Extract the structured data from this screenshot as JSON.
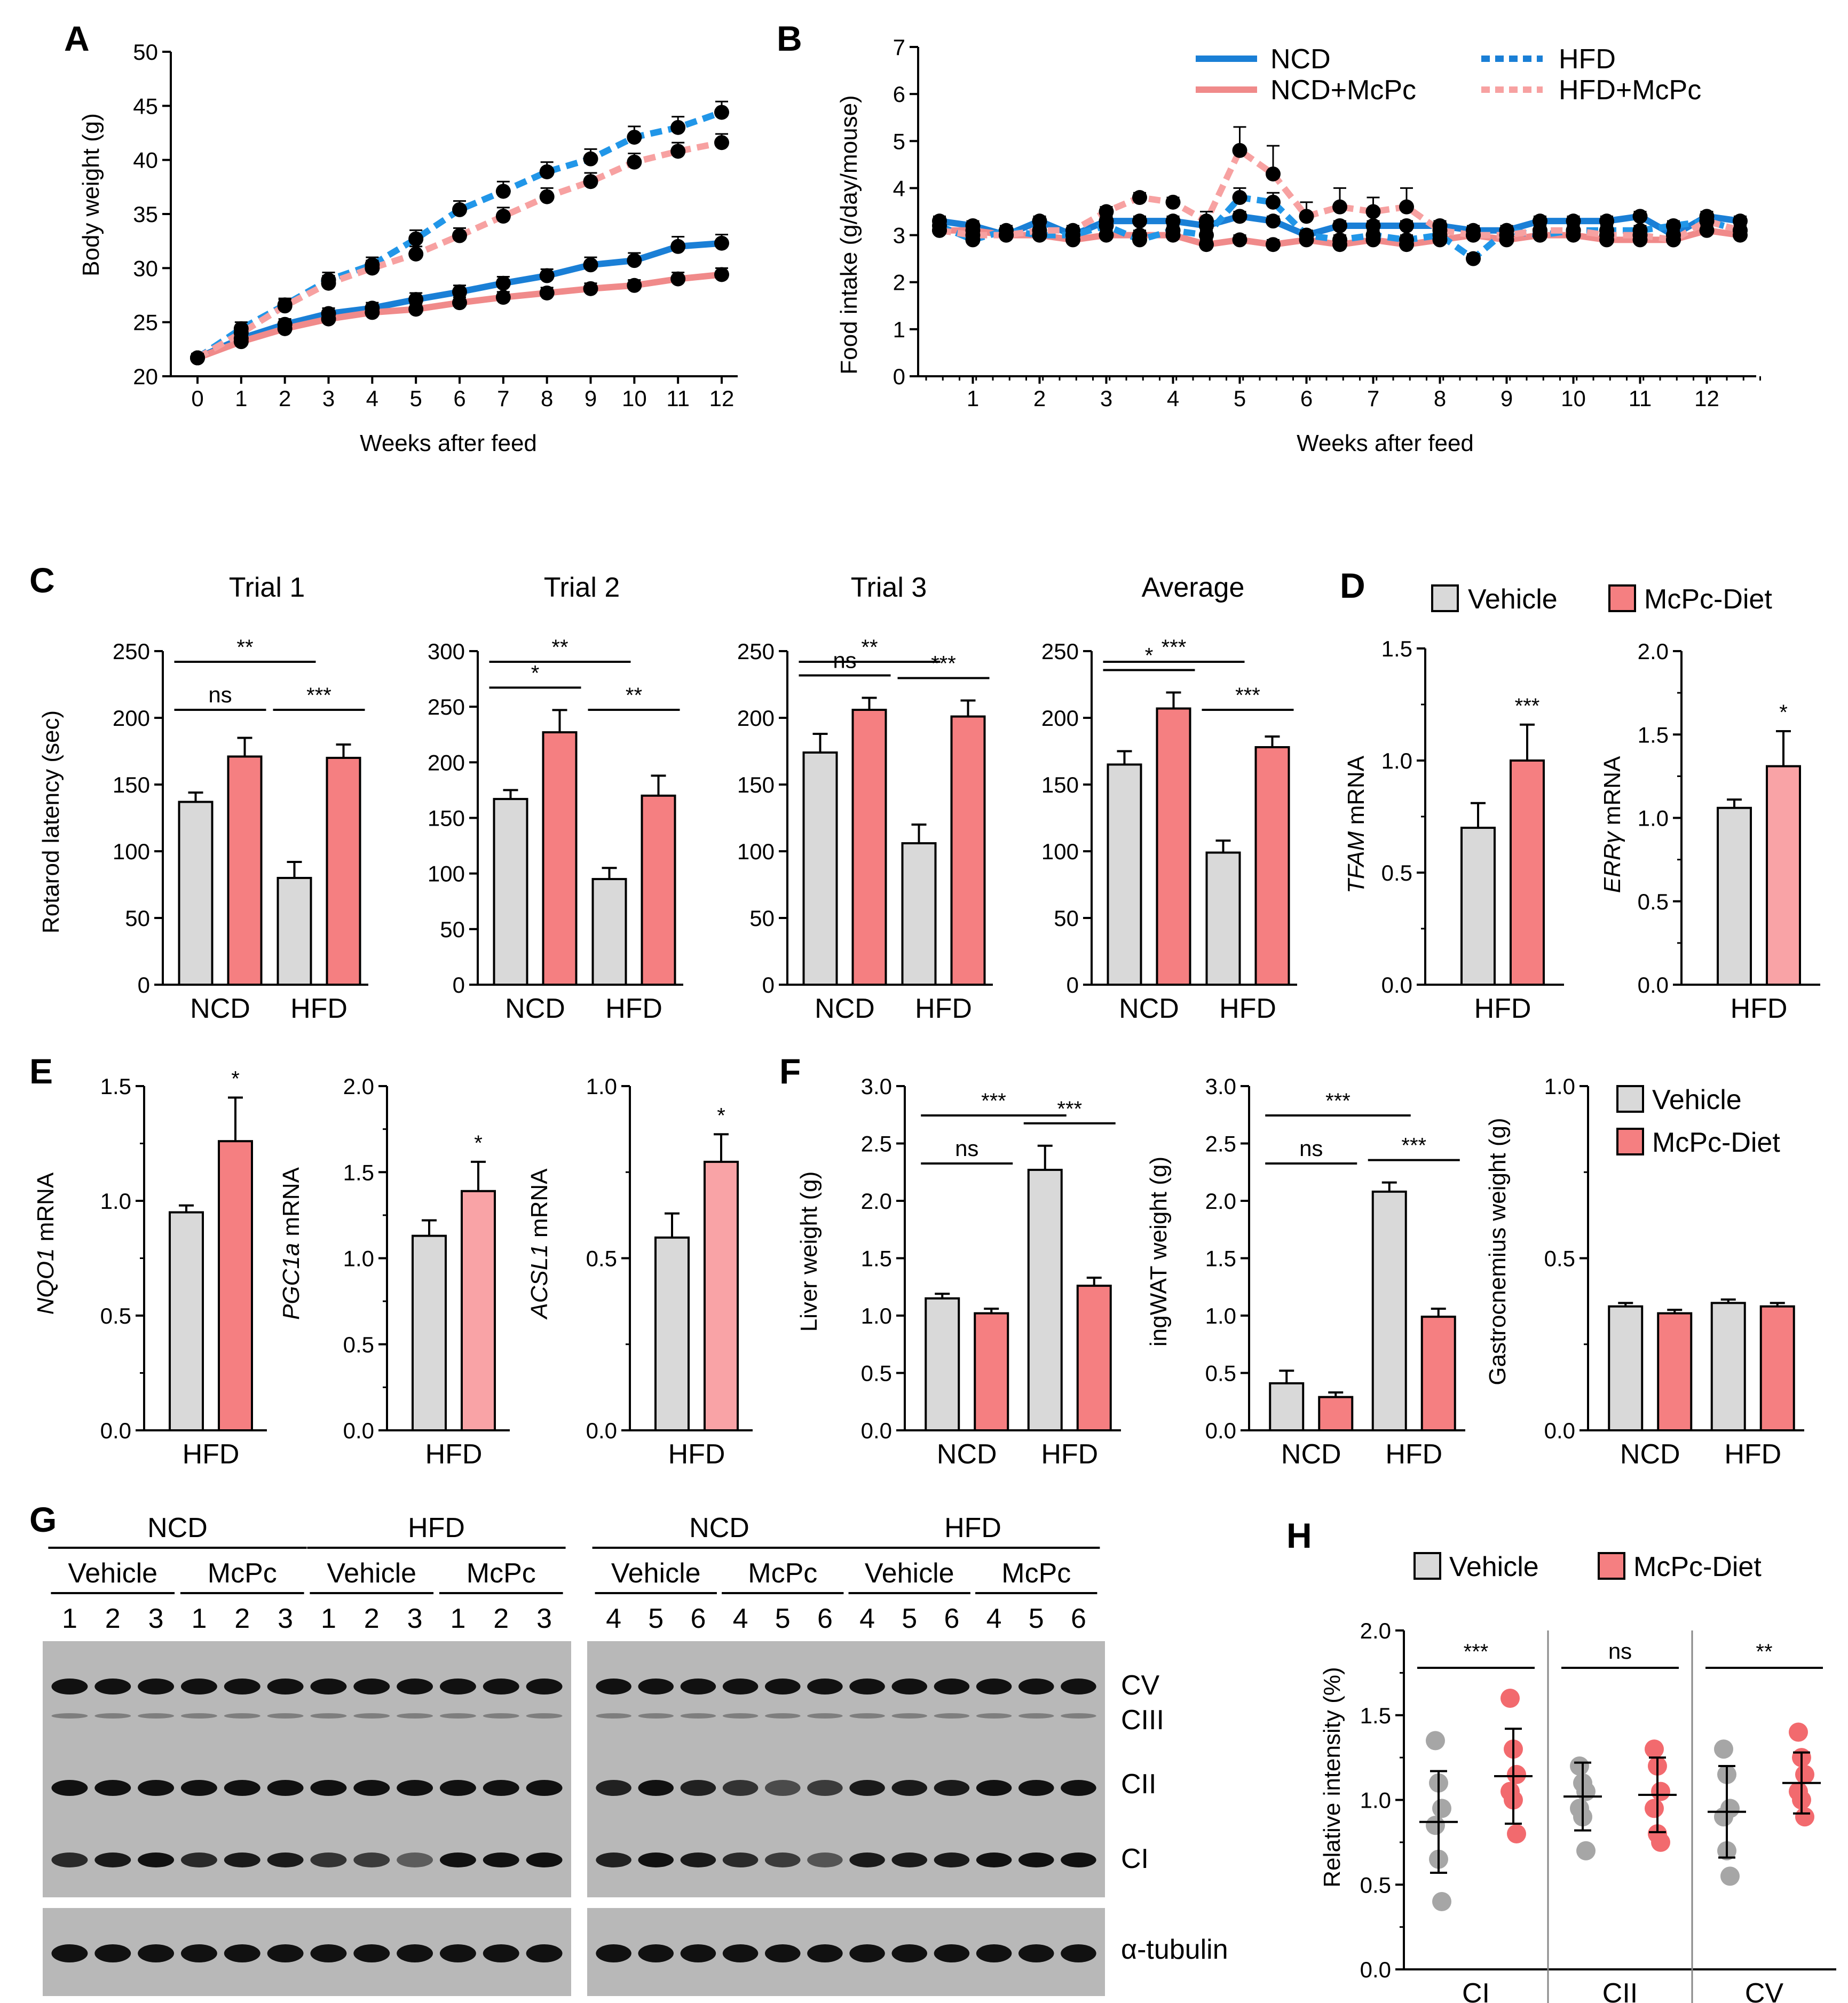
{
  "colors": {
    "ncd": "#1a7fd6",
    "ncd_mcpc": "#f08a8a",
    "hfd": "#2196e8",
    "hfd_mcpc": "#f7a1a1",
    "vehicle": "#d9d9d9",
    "mcpc": "#f57f81",
    "mcpc_light": "#f9a3a6",
    "dot_gray": "#a6a6a6",
    "dot_red": "#f26a6e"
  },
  "panels": {
    "A": "A",
    "B": "B",
    "C": "C",
    "D": "D",
    "E": "E",
    "F": "F",
    "G": "G",
    "H": "H"
  },
  "legends": {
    "b": {
      "ncd": "NCD",
      "ncd_mcpc": "NCD+McPc",
      "hfd": "HFD",
      "hfd_mcpc": "HFD+McPc"
    },
    "vehicle": "Vehicle",
    "mcpc_diet": "McPc-Diet"
  },
  "chart_data": [
    {
      "id": "A",
      "type": "line",
      "ylabel": "Body weight (g)",
      "xlabel": "Weeks after feed",
      "ylim": [
        20,
        50
      ],
      "yticks": [
        20,
        25,
        30,
        35,
        40,
        45,
        50
      ],
      "x": [
        0,
        1,
        2,
        3,
        4,
        5,
        6,
        7,
        8,
        9,
        10,
        11,
        12
      ],
      "series": [
        {
          "name": "NCD",
          "values": [
            21.7,
            23.5,
            24.8,
            25.8,
            26.3,
            27.1,
            27.8,
            28.6,
            29.3,
            30.3,
            30.7,
            32.0,
            32.3
          ],
          "err": [
            0.4,
            0.5,
            0.5,
            0.5,
            0.5,
            0.6,
            0.6,
            0.6,
            0.6,
            0.7,
            0.7,
            0.9,
            0.8
          ]
        },
        {
          "name": "NCD+McPc",
          "values": [
            21.7,
            23.2,
            24.4,
            25.3,
            25.9,
            26.2,
            26.8,
            27.3,
            27.7,
            28.1,
            28.4,
            29.0,
            29.4
          ],
          "err": [
            0.4,
            0.5,
            0.5,
            0.5,
            0.5,
            0.5,
            0.5,
            0.5,
            0.5,
            0.5,
            0.5,
            0.6,
            0.6
          ]
        },
        {
          "name": "HFD",
          "values": [
            21.7,
            24.4,
            26.6,
            28.9,
            30.3,
            32.7,
            35.4,
            37.1,
            38.9,
            40.1,
            42.1,
            43.0,
            44.4
          ],
          "err": [
            0.4,
            0.6,
            0.6,
            0.7,
            0.7,
            0.8,
            0.8,
            0.9,
            0.9,
            0.9,
            1.0,
            1.0,
            1.0
          ]
        },
        {
          "name": "HFD+McPc",
          "values": [
            21.7,
            24.0,
            26.5,
            28.6,
            30.0,
            31.3,
            33.0,
            34.8,
            36.6,
            38.0,
            39.8,
            40.8,
            41.6
          ],
          "err": [
            0.4,
            0.5,
            0.6,
            0.7,
            0.7,
            0.7,
            0.7,
            0.8,
            0.8,
            0.8,
            0.8,
            0.8,
            0.8
          ]
        }
      ]
    },
    {
      "id": "B",
      "type": "line",
      "ylabel": "Food intake (g/day/mouse)",
      "xlabel": "Weeks after feed",
      "ylim": [
        0,
        7
      ],
      "yticks": [
        0,
        1,
        2,
        3,
        4,
        5,
        6,
        7
      ],
      "xticks": [
        1,
        2,
        3,
        4,
        5,
        6,
        7,
        8,
        9,
        10,
        11,
        12
      ],
      "x": [
        0.5,
        1.0,
        1.5,
        2.0,
        2.5,
        3.0,
        3.5,
        4.0,
        4.5,
        5.0,
        5.5,
        6.0,
        6.5,
        7.0,
        7.5,
        8.0,
        8.5,
        9.0,
        9.5,
        10.0,
        10.5,
        11.0,
        11.5,
        12.0,
        12.5
      ],
      "series": [
        {
          "name": "NCD",
          "values": [
            3.3,
            3.2,
            3.0,
            3.3,
            3.0,
            3.3,
            3.3,
            3.3,
            3.2,
            3.4,
            3.3,
            3.0,
            3.2,
            3.2,
            3.2,
            3.2,
            3.1,
            3.1,
            3.3,
            3.3,
            3.3,
            3.4,
            3.0,
            3.4,
            3.3
          ],
          "err": [
            0.1,
            0.1,
            0.1,
            0.1,
            0.1,
            0.1,
            0.1,
            0.1,
            0.1,
            0.1,
            0.1,
            0.1,
            0.1,
            0.1,
            0.1,
            0.1,
            0.1,
            0.1,
            0.1,
            0.1,
            0.1,
            0.1,
            0.1,
            0.1,
            0.1
          ]
        },
        {
          "name": "NCD+McPc",
          "values": [
            3.1,
            3.1,
            3.0,
            3.0,
            2.9,
            3.0,
            3.0,
            3.0,
            2.8,
            2.9,
            2.8,
            2.9,
            2.8,
            2.9,
            2.8,
            2.9,
            3.0,
            2.9,
            3.0,
            3.0,
            2.9,
            2.9,
            2.9,
            3.1,
            3.0
          ],
          "err": [
            0.1,
            0.1,
            0.1,
            0.1,
            0.1,
            0.1,
            0.1,
            0.1,
            0.1,
            0.1,
            0.1,
            0.1,
            0.1,
            0.1,
            0.1,
            0.1,
            0.1,
            0.1,
            0.1,
            0.1,
            0.1,
            0.1,
            0.1,
            0.1,
            0.1
          ]
        },
        {
          "name": "HFD",
          "values": [
            3.2,
            2.9,
            3.1,
            3.0,
            3.0,
            3.2,
            2.9,
            3.1,
            3.0,
            3.8,
            3.7,
            3.0,
            2.9,
            3.0,
            2.9,
            3.0,
            2.5,
            3.1,
            3.0,
            3.1,
            3.1,
            3.1,
            3.2,
            3.3,
            3.1
          ],
          "err": [
            0.1,
            0.1,
            0.1,
            0.1,
            0.1,
            0.1,
            0.1,
            0.1,
            0.1,
            0.2,
            0.2,
            0.1,
            0.1,
            0.1,
            0.1,
            0.1,
            0.1,
            0.1,
            0.1,
            0.1,
            0.1,
            0.1,
            0.1,
            0.1,
            0.1
          ]
        },
        {
          "name": "HFD+McPc",
          "values": [
            3.1,
            3.0,
            3.0,
            3.1,
            3.1,
            3.5,
            3.8,
            3.7,
            3.3,
            4.8,
            4.3,
            3.4,
            3.6,
            3.5,
            3.6,
            3.1,
            3.0,
            3.0,
            3.1,
            3.1,
            3.0,
            3.0,
            2.9,
            3.3,
            3.1
          ],
          "err": [
            0.1,
            0.1,
            0.1,
            0.1,
            0.1,
            0.1,
            0.1,
            0.1,
            0.2,
            0.5,
            0.6,
            0.3,
            0.4,
            0.3,
            0.4,
            0.2,
            0.1,
            0.1,
            0.1,
            0.1,
            0.1,
            0.1,
            0.1,
            0.1,
            0.1
          ]
        }
      ]
    },
    {
      "id": "C-trial1",
      "type": "bar",
      "title": "Trial 1",
      "ylabel": "Rotarod latency (sec)",
      "ylim": [
        0,
        250
      ],
      "yticks": [
        0,
        50,
        100,
        150,
        200,
        250
      ],
      "groups": [
        "NCD",
        "HFD"
      ],
      "values": [
        [
          137,
          171
        ],
        [
          80,
          170
        ]
      ],
      "err": [
        [
          7,
          14
        ],
        [
          12,
          10
        ]
      ],
      "comparisons": [
        {
          "from": [
            0,
            0
          ],
          "to": [
            1,
            0
          ],
          "label": "**"
        },
        {
          "from": [
            0,
            0
          ],
          "to": [
            0,
            1
          ],
          "label": "ns"
        },
        {
          "from": [
            1,
            0
          ],
          "to": [
            1,
            1
          ],
          "label": "***"
        }
      ]
    },
    {
      "id": "C-trial2",
      "type": "bar",
      "title": "Trial 2",
      "ylim": [
        0,
        300
      ],
      "yticks": [
        0,
        50,
        100,
        150,
        200,
        250,
        300
      ],
      "groups": [
        "NCD",
        "HFD"
      ],
      "values": [
        [
          167,
          227
        ],
        [
          95,
          170
        ]
      ],
      "err": [
        [
          8,
          20
        ],
        [
          10,
          18
        ]
      ],
      "comparisons": [
        {
          "from": [
            0,
            0
          ],
          "to": [
            1,
            0
          ],
          "label": "**"
        },
        {
          "from": [
            0,
            0
          ],
          "to": [
            0,
            1
          ],
          "label": "*"
        },
        {
          "from": [
            1,
            0
          ],
          "to": [
            1,
            1
          ],
          "label": "**"
        }
      ]
    },
    {
      "id": "C-trial3",
      "type": "bar",
      "title": "Trial 3",
      "ylim": [
        0,
        250
      ],
      "yticks": [
        0,
        50,
        100,
        150,
        200,
        250
      ],
      "groups": [
        "NCD",
        "HFD"
      ],
      "values": [
        [
          174,
          206
        ],
        [
          106,
          201
        ]
      ],
      "err": [
        [
          14,
          9
        ],
        [
          14,
          12
        ]
      ],
      "comparisons": [
        {
          "from": [
            0,
            0
          ],
          "to": [
            1,
            0
          ],
          "label": "**"
        },
        {
          "from": [
            0,
            0
          ],
          "to": [
            0,
            1
          ],
          "label": "ns"
        },
        {
          "from": [
            1,
            0
          ],
          "to": [
            1,
            1
          ],
          "label": "***"
        }
      ]
    },
    {
      "id": "C-average",
      "type": "bar",
      "title": "Average",
      "ylim": [
        0,
        250
      ],
      "yticks": [
        0,
        50,
        100,
        150,
        200,
        250
      ],
      "groups": [
        "NCD",
        "HFD"
      ],
      "values": [
        [
          165,
          207
        ],
        [
          99,
          178
        ]
      ],
      "err": [
        [
          10,
          12
        ],
        [
          9,
          8
        ]
      ],
      "comparisons": [
        {
          "from": [
            0,
            0
          ],
          "to": [
            1,
            0
          ],
          "label": "***"
        },
        {
          "from": [
            0,
            0
          ],
          "to": [
            0,
            1
          ],
          "label": "*"
        },
        {
          "from": [
            1,
            0
          ],
          "to": [
            1,
            1
          ],
          "label": "***"
        }
      ]
    },
    {
      "id": "D-tfam",
      "type": "bar",
      "ylabel_italic": "TFAM",
      "ylabel_rest": " mRNA",
      "ylim": [
        0,
        1.5
      ],
      "yticks": [
        0.0,
        0.5,
        1.0,
        1.5
      ],
      "groups": [
        "HFD"
      ],
      "values": [
        [
          0.7,
          1.0
        ]
      ],
      "err": [
        [
          0.11,
          0.16
        ]
      ],
      "star": "***"
    },
    {
      "id": "D-errg",
      "type": "bar",
      "ylabel_italic": "ERRγ",
      "ylabel_rest": " mRNA",
      "ylim": [
        0,
        2.0
      ],
      "yticks": [
        0.0,
        0.5,
        1.0,
        1.5,
        2.0
      ],
      "groups": [
        "HFD"
      ],
      "values": [
        [
          1.06,
          1.31
        ]
      ],
      "err": [
        [
          0.05,
          0.21
        ]
      ],
      "star": "*"
    },
    {
      "id": "E-nqo1",
      "type": "bar",
      "ylabel_italic": "NQO1",
      "ylabel_rest": " mRNA",
      "ylim": [
        0,
        1.5
      ],
      "yticks": [
        0.0,
        0.5,
        1.0,
        1.5
      ],
      "groups": [
        "HFD"
      ],
      "values": [
        [
          0.95,
          1.26
        ]
      ],
      "err": [
        [
          0.03,
          0.19
        ]
      ],
      "star": "*"
    },
    {
      "id": "E-pgc1a",
      "type": "bar",
      "ylabel_italic": "PGC1a",
      "ylabel_rest": " mRNA",
      "ylim": [
        0,
        2.0
      ],
      "yticks": [
        0.0,
        0.5,
        1.0,
        1.5,
        2.0
      ],
      "groups": [
        "HFD"
      ],
      "values": [
        [
          1.13,
          1.39
        ]
      ],
      "err": [
        [
          0.09,
          0.17
        ]
      ],
      "star": "*"
    },
    {
      "id": "E-acsl1",
      "type": "bar",
      "ylabel_italic": "ACSL1",
      "ylabel_rest": " mRNA",
      "ylim": [
        0,
        1.0
      ],
      "yticks": [
        0.0,
        0.5,
        1.0
      ],
      "groups": [
        "HFD"
      ],
      "values": [
        [
          0.56,
          0.78
        ]
      ],
      "err": [
        [
          0.07,
          0.08
        ]
      ],
      "star": "*"
    },
    {
      "id": "F-liver",
      "type": "bar",
      "ylabel": "Liver weight (g)",
      "ylim": [
        0,
        3.0
      ],
      "yticks": [
        0.0,
        0.5,
        1.0,
        1.5,
        2.0,
        2.5,
        3.0
      ],
      "groups": [
        "NCD",
        "HFD"
      ],
      "values": [
        [
          1.15,
          1.02
        ],
        [
          2.27,
          1.26
        ]
      ],
      "err": [
        [
          0.04,
          0.04
        ],
        [
          0.21,
          0.07
        ]
      ],
      "comparisons": [
        {
          "from": [
            0,
            0
          ],
          "to": [
            1,
            0
          ],
          "label": "***"
        },
        {
          "from": [
            0,
            0
          ],
          "to": [
            0,
            1
          ],
          "label": "ns"
        },
        {
          "from": [
            1,
            0
          ],
          "to": [
            1,
            1
          ],
          "label": "***"
        }
      ]
    },
    {
      "id": "F-ingwat",
      "type": "bar",
      "ylabel": "ingWAT weight (g)",
      "ylim": [
        0,
        3.0
      ],
      "yticks": [
        0.0,
        0.5,
        1.0,
        1.5,
        2.0,
        2.5,
        3.0
      ],
      "groups": [
        "NCD",
        "HFD"
      ],
      "values": [
        [
          0.41,
          0.29
        ],
        [
          2.08,
          0.99
        ]
      ],
      "err": [
        [
          0.11,
          0.04
        ],
        [
          0.08,
          0.07
        ]
      ],
      "comparisons": [
        {
          "from": [
            0,
            0
          ],
          "to": [
            1,
            0
          ],
          "label": "***"
        },
        {
          "from": [
            0,
            0
          ],
          "to": [
            0,
            1
          ],
          "label": "ns"
        },
        {
          "from": [
            1,
            0
          ],
          "to": [
            1,
            1
          ],
          "label": "***"
        }
      ]
    },
    {
      "id": "F-gastro",
      "type": "bar",
      "ylabel": "Gastrocnemius weight (g)",
      "ylim": [
        0,
        1.0
      ],
      "yticks": [
        0.0,
        0.5,
        1.0
      ],
      "groups": [
        "NCD",
        "HFD"
      ],
      "values": [
        [
          0.36,
          0.34
        ],
        [
          0.37,
          0.36
        ]
      ],
      "err": [
        [
          0.01,
          0.01
        ],
        [
          0.01,
          0.01
        ]
      ]
    },
    {
      "id": "H",
      "type": "scatter",
      "ylabel": "Relative intensity (%)",
      "ylim": [
        0,
        2.0
      ],
      "yticks": [
        0.0,
        0.5,
        1.0,
        1.5,
        2.0
      ],
      "categories": [
        "CI",
        "CII",
        "CV"
      ],
      "groups": [
        {
          "vehicle": [
            1.35,
            1.1,
            0.95,
            0.85,
            0.65,
            0.4
          ],
          "mcpc": [
            1.6,
            1.3,
            1.15,
            1.05,
            1.0,
            0.8
          ],
          "mean": [
            0.87,
            1.14
          ],
          "sd": [
            0.3,
            0.28
          ],
          "sig": "***"
        },
        {
          "vehicle": [
            1.2,
            1.1,
            1.05,
            0.95,
            0.9,
            0.7
          ],
          "mcpc": [
            1.3,
            1.2,
            1.05,
            0.95,
            0.8,
            0.75
          ],
          "mean": [
            1.02,
            1.03
          ],
          "sd": [
            0.2,
            0.22
          ],
          "sig": "ns"
        },
        {
          "vehicle": [
            1.3,
            1.15,
            0.95,
            0.9,
            0.7,
            0.55
          ],
          "mcpc": [
            1.4,
            1.25,
            1.15,
            1.05,
            1.0,
            0.9
          ],
          "mean": [
            0.93,
            1.1
          ],
          "sd": [
            0.27,
            0.18
          ],
          "sig": "**"
        }
      ]
    }
  ],
  "western": {
    "left": {
      "top": [
        "NCD",
        "HFD"
      ],
      "sub": [
        "Vehicle",
        "McPc",
        "Vehicle",
        "McPc"
      ],
      "lanes": [
        "1",
        "2",
        "3",
        "1",
        "2",
        "3",
        "1",
        "2",
        "3",
        "1",
        "2",
        "3"
      ]
    },
    "right": {
      "top": [
        "NCD",
        "HFD"
      ],
      "sub": [
        "Vehicle",
        "McPc",
        "Vehicle",
        "McPc"
      ],
      "lanes": [
        "4",
        "5",
        "6",
        "4",
        "5",
        "6",
        "4",
        "5",
        "6",
        "4",
        "5",
        "6"
      ]
    },
    "bands": [
      "CV",
      "CIII",
      "CII",
      "CI"
    ],
    "loading": "α-tubulin"
  }
}
